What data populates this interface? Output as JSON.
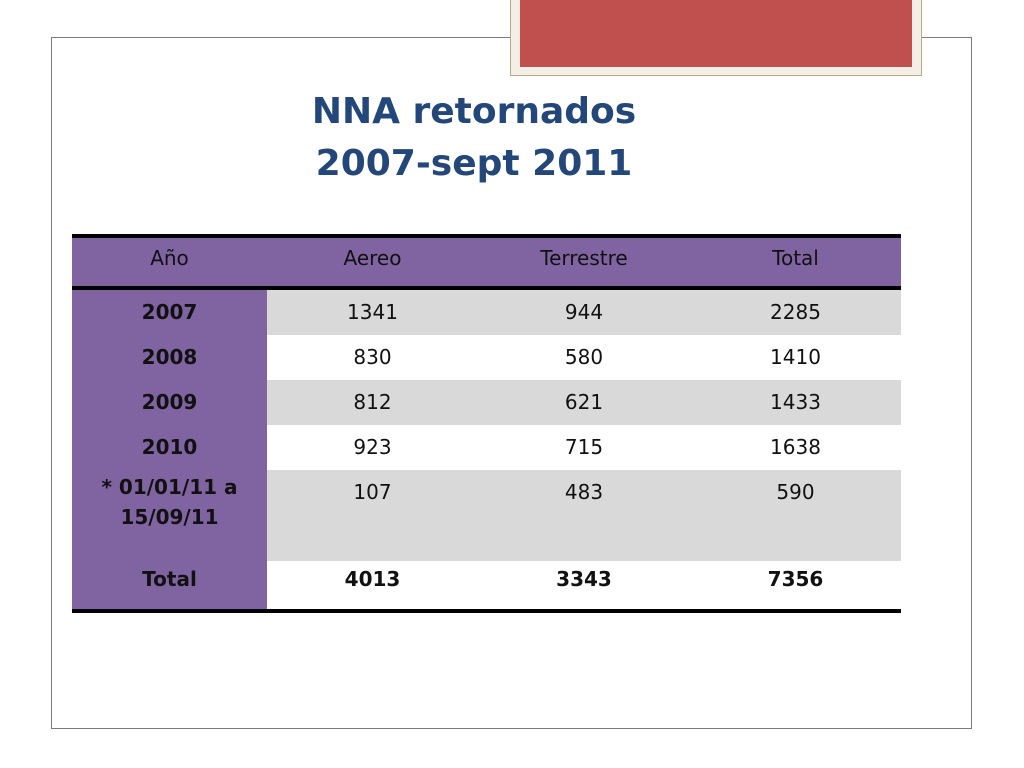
{
  "title": {
    "line1": "NNA retornados",
    "line2": "2007-sept 2011"
  },
  "table": {
    "headers": [
      "Año",
      "Aereo",
      "Terrestre",
      "Total"
    ],
    "rows": [
      {
        "year": "2007",
        "aereo": "1341",
        "terrestre": "944",
        "total": "2285"
      },
      {
        "year": "2008",
        "aereo": "830",
        "terrestre": "580",
        "total": "1410"
      },
      {
        "year": "2009",
        "aereo": "812",
        "terrestre": "621",
        "total": "1433"
      },
      {
        "year": "2010",
        "aereo": "923",
        "terrestre": "715",
        "total": "1638"
      },
      {
        "year_line1": "* 01/01/11 a",
        "year_line2": "15/09/11",
        "aereo": "107",
        "terrestre": "483",
        "total": "590"
      }
    ],
    "totals": {
      "label": "Total",
      "aereo": "4013",
      "terrestre": "3343",
      "total": "7356"
    }
  },
  "colors": {
    "title": "#24477a",
    "header_bg": "#8064a2",
    "row_gray": "#d9d9d9",
    "accent": "#c0504d"
  }
}
